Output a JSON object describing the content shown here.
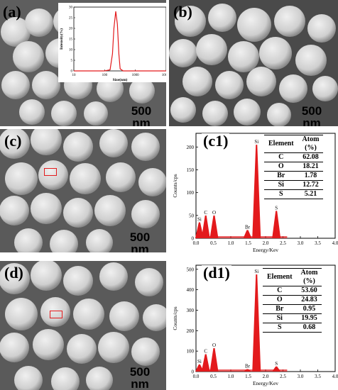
{
  "panels": {
    "a": {
      "label": "(a)",
      "scalebar": "500 nm"
    },
    "b": {
      "label": "(b)",
      "scalebar": "500 nm"
    },
    "c": {
      "label": "(c)",
      "scalebar": "500 nm"
    },
    "d": {
      "label": "(d)",
      "scalebar": "500 nm"
    },
    "c1": {
      "label": "(c1)"
    },
    "d1": {
      "label": "(d1)"
    }
  },
  "colors": {
    "trace": "#e31a1c",
    "marker_box": "#e31a1c"
  },
  "chart_data": [
    {
      "id": "a-inset",
      "type": "line",
      "xlabel": "Size(nm)",
      "ylabel": "Intensity(%)",
      "xscale": "log",
      "xlim": [
        10,
        10000
      ],
      "ylim": [
        0,
        30
      ],
      "xticks": [
        "10",
        "100",
        "1000",
        "10000"
      ],
      "yticks": [
        "0",
        "5",
        "10",
        "15",
        "20",
        "25",
        "30"
      ],
      "x": [
        10,
        100,
        150,
        180,
        200,
        230,
        260,
        290,
        320,
        400,
        1000,
        10000
      ],
      "y": [
        0,
        0,
        0.5,
        8,
        20,
        28,
        22,
        8,
        1,
        0,
        0,
        0
      ]
    },
    {
      "id": "c1",
      "type": "bar",
      "xlabel": "Energy/Kev",
      "ylabel": "Counts/cps",
      "xlim": [
        0,
        4.0
      ],
      "ylim": [
        0,
        230
      ],
      "xticks": [
        "0.0",
        "0.5",
        "1.0",
        "1.5",
        "2.0",
        "2.5",
        "3.0",
        "3.5",
        "4.0"
      ],
      "yticks": [
        "0",
        "50",
        "100",
        "150",
        "200"
      ],
      "peaks": [
        {
          "element": "Si",
          "x": 0.1,
          "y": 35
        },
        {
          "element": "C",
          "x": 0.28,
          "y": 50
        },
        {
          "element": "O",
          "x": 0.52,
          "y": 50
        },
        {
          "element": "Br",
          "x": 1.48,
          "y": 18
        },
        {
          "element": "Si",
          "x": 1.74,
          "y": 205
        },
        {
          "element": "S",
          "x": 2.31,
          "y": 60
        }
      ],
      "table": {
        "headers": [
          "Element",
          "Atom\n(%)"
        ],
        "rows": [
          [
            "C",
            "62.08"
          ],
          [
            "O",
            "18.21"
          ],
          [
            "Br",
            "1.78"
          ],
          [
            "Si",
            "12.72"
          ],
          [
            "S",
            "5.21"
          ]
        ]
      }
    },
    {
      "id": "d1",
      "type": "bar",
      "xlabel": "Energy/Kev",
      "ylabel": "Counts/cps",
      "xlim": [
        0,
        4.0
      ],
      "ylim": [
        0,
        520
      ],
      "xticks": [
        "0.0",
        "0.5",
        "1.0",
        "1.5",
        "2.0",
        "2.5",
        "3.0",
        "3.5",
        "4.0"
      ],
      "yticks": [
        "0",
        "100",
        "200",
        "300",
        "400",
        "500"
      ],
      "peaks": [
        {
          "element": "Si",
          "x": 0.1,
          "y": 35
        },
        {
          "element": "C",
          "x": 0.28,
          "y": 85
        },
        {
          "element": "O",
          "x": 0.52,
          "y": 115
        },
        {
          "element": "Br",
          "x": 1.48,
          "y": 12
        },
        {
          "element": "Si",
          "x": 1.74,
          "y": 475
        },
        {
          "element": "S",
          "x": 2.31,
          "y": 25
        }
      ],
      "table": {
        "headers": [
          "Element",
          "Atom\n(%)"
        ],
        "rows": [
          [
            "C",
            "53.60"
          ],
          [
            "O",
            "24.83"
          ],
          [
            "Br",
            "0.95"
          ],
          [
            "Si",
            "19.95"
          ],
          [
            "S",
            "0.68"
          ]
        ]
      }
    }
  ]
}
